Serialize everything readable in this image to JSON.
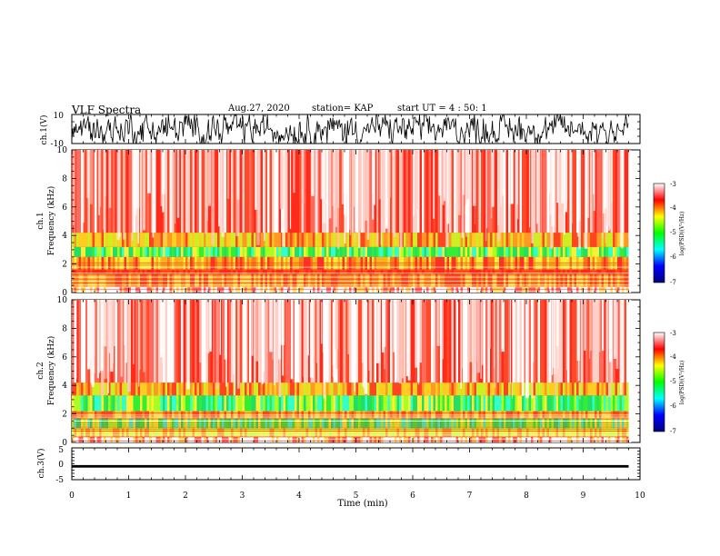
{
  "header": {
    "title": "VLF Spectra",
    "date": "Aug.27, 2020",
    "station": "station= KAP",
    "start_ut": "start  UT =   4 : 50: 1"
  },
  "chart_data": [
    {
      "type": "line",
      "panel": "ch1-waveform",
      "ylabel": "ch.1(V)",
      "ylim": [
        -10,
        10
      ],
      "yticks": [
        "10",
        "-10"
      ],
      "xlim": [
        0,
        10
      ],
      "color": "#000000"
    },
    {
      "type": "heatmap",
      "panel": "ch1-spectrogram",
      "ylabel_top": "ch.1",
      "ylabel": "Frequency  (kHz)",
      "ylim": [
        0,
        10
      ],
      "yticks": [
        "0",
        "2",
        "4",
        "6",
        "8",
        "10"
      ],
      "xlim": [
        0,
        9.8
      ],
      "colorbar": {
        "label": "log(PSD)(V²/Hz)",
        "range": [
          -7,
          -3
        ],
        "ticks": [
          "-3",
          "-4",
          "-5",
          "-6",
          "-7"
        ],
        "colors": [
          "#000080",
          "#0000ff",
          "#00ffff",
          "#00ff00",
          "#ffff00",
          "#ff0000",
          "#ffffff"
        ]
      },
      "bands": [
        {
          "from": 0,
          "to": 0.4,
          "level": "white-stripes"
        },
        {
          "from": 0.4,
          "to": 1.3,
          "level": "orange"
        },
        {
          "from": 1.3,
          "to": 1.6,
          "level": "red"
        },
        {
          "from": 1.6,
          "to": 2.5,
          "level": "orange-yellow"
        },
        {
          "from": 2.5,
          "to": 3.2,
          "level": "green"
        },
        {
          "from": 3.2,
          "to": 4.2,
          "level": "yellow-orange"
        },
        {
          "from": 4.2,
          "to": 10,
          "level": "red-white"
        }
      ]
    },
    {
      "type": "heatmap",
      "panel": "ch2-spectrogram",
      "ylabel_top": "ch.2",
      "ylabel": "Frequency  (kHz)",
      "ylim": [
        0,
        10
      ],
      "yticks": [
        "0",
        "2",
        "4",
        "6",
        "8",
        "10"
      ],
      "xlim": [
        0,
        9.8
      ],
      "colorbar": {
        "label": "log(PSD)(V²/Hz)",
        "range": [
          -7,
          -3
        ],
        "ticks": [
          "-3",
          "-4",
          "-5",
          "-6",
          "-7"
        ],
        "colors": [
          "#000080",
          "#0000ff",
          "#00ffff",
          "#00ff00",
          "#ffff00",
          "#ff0000",
          "#ffffff"
        ]
      },
      "bands": [
        {
          "from": 0,
          "to": 0.4,
          "level": "white-stripes"
        },
        {
          "from": 0.4,
          "to": 1.0,
          "level": "yellow"
        },
        {
          "from": 1.0,
          "to": 1.7,
          "level": "green"
        },
        {
          "from": 1.7,
          "to": 2.2,
          "level": "orange"
        },
        {
          "from": 2.2,
          "to": 3.3,
          "level": "green"
        },
        {
          "from": 3.3,
          "to": 4.2,
          "level": "yellow-orange"
        },
        {
          "from": 4.2,
          "to": 10,
          "level": "red-white"
        }
      ]
    },
    {
      "type": "line",
      "panel": "ch3-waveform",
      "ylabel": "ch.3(V)",
      "ylim": [
        -5,
        5
      ],
      "yticks": [
        "5",
        "0",
        "-5"
      ],
      "xlim": [
        0,
        10
      ],
      "band": [
        -1.2,
        -0.4
      ],
      "color": "#000000"
    }
  ],
  "xaxis": {
    "label": "Time  (min)",
    "range": [
      0,
      10
    ],
    "ticks": [
      "0",
      "1",
      "2",
      "3",
      "4",
      "5",
      "6",
      "7",
      "8",
      "9",
      "10"
    ]
  }
}
